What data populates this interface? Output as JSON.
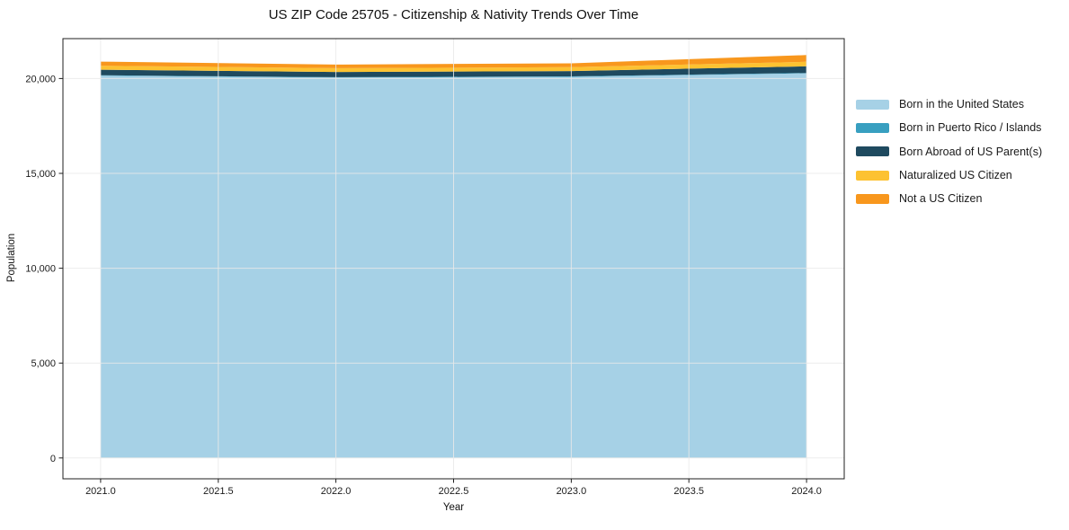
{
  "chart_data": {
    "type": "area",
    "stacked": true,
    "title": "US ZIP Code 25705 - Citizenship & Nativity Trends Over Time",
    "xlabel": "Year",
    "ylabel": "Population",
    "x": [
      2021,
      2022,
      2023,
      2024
    ],
    "series": [
      {
        "name": "Born in the United States",
        "color": "#a6d1e6",
        "values": [
          20150,
          20050,
          20090,
          20270
        ]
      },
      {
        "name": "Born in Puerto Rico / Islands",
        "color": "#389fc0",
        "values": [
          20,
          20,
          20,
          20
        ]
      },
      {
        "name": "Born Abroad of US Parent(s)",
        "color": "#1f4a5f",
        "values": [
          290,
          275,
          280,
          350
        ]
      },
      {
        "name": "Naturalized US Citizen",
        "color": "#fdc231",
        "values": [
          210,
          195,
          205,
          240
        ]
      },
      {
        "name": "Not a US Citizen",
        "color": "#f8971d",
        "values": [
          220,
          190,
          205,
          355
        ]
      }
    ],
    "xticks": [
      2021,
      2021.5,
      2022,
      2022.5,
      2023,
      2023.5,
      2024
    ],
    "xtick_labels": [
      "2021.0",
      "2021.5",
      "2022.0",
      "2022.5",
      "2023.0",
      "2023.5",
      "2024.0"
    ],
    "yticks": [
      0,
      5000,
      10000,
      15000,
      20000
    ],
    "ytick_labels": [
      "0",
      "5,000",
      "10,000",
      "15,000",
      "20,000"
    ],
    "xlim": [
      2020.84,
      2024.16
    ],
    "ylim": [
      -1100,
      22100
    ],
    "grid": true,
    "legend_position": "right-outside"
  },
  "colors": {
    "grid": "#e9e9e9",
    "spine": "#1f1f1f",
    "tick_text": "#1a1a1a",
    "background": "#ffffff"
  }
}
